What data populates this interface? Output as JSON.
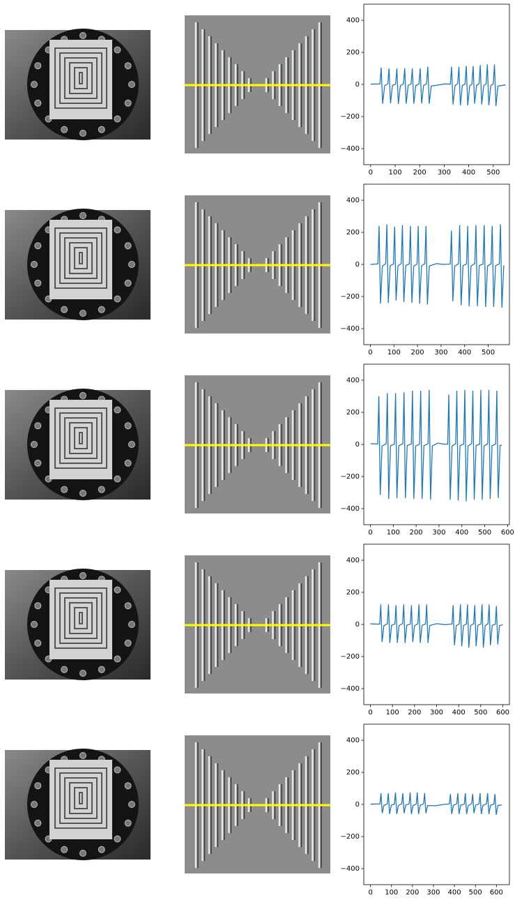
{
  "chart_data": [
    {
      "type": "line",
      "color": "#1f77b4",
      "xlim": [
        -28,
        566
      ],
      "ylim": [
        -500,
        500
      ],
      "xticks": [
        0,
        100,
        200,
        300,
        400,
        500
      ],
      "yticks": [
        {
          "value": -400,
          "label": "−400"
        },
        {
          "value": -200,
          "label": "−200"
        },
        0,
        200,
        400
      ],
      "x": [
        0,
        38,
        43,
        49,
        57,
        70,
        75,
        81,
        89,
        102,
        107,
        113,
        121,
        134,
        139,
        145,
        153,
        165,
        170,
        176,
        184,
        197,
        202,
        208,
        216,
        228,
        233,
        239,
        247,
        270,
        300,
        325,
        330,
        336,
        344,
        355,
        360,
        366,
        374,
        385,
        390,
        396,
        404,
        413,
        418,
        424,
        432,
        442,
        447,
        453,
        461,
        471,
        476,
        482,
        490,
        500,
        505,
        511,
        519,
        550
      ],
      "values": [
        2,
        3,
        105,
        -120,
        -8,
        4,
        100,
        -118,
        -6,
        2,
        100,
        -122,
        -9,
        5,
        100,
        -120,
        -5,
        3,
        100,
        -121,
        -7,
        2,
        100,
        -119,
        -6,
        4,
        110,
        -120,
        -10,
        -5,
        3,
        2,
        110,
        -125,
        -8,
        5,
        110,
        -130,
        -6,
        3,
        115,
        -130,
        -9,
        2,
        115,
        -120,
        -5,
        4,
        120,
        -125,
        -7,
        3,
        125,
        -130,
        -6,
        2,
        125,
        -135,
        -10,
        -3
      ]
    },
    {
      "type": "line",
      "color": "#1f77b4",
      "xlim": [
        -28,
        590
      ],
      "ylim": [
        -500,
        500
      ],
      "xticks": [
        0,
        100,
        200,
        300,
        400,
        500
      ],
      "yticks": [
        {
          "value": -400,
          "label": "−400"
        },
        {
          "value": -200,
          "label": "−200"
        },
        0,
        200,
        400
      ],
      "x": [
        0,
        32,
        37,
        43,
        51,
        65,
        70,
        76,
        84,
        98,
        103,
        109,
        117,
        131,
        136,
        142,
        150,
        165,
        170,
        176,
        184,
        198,
        203,
        209,
        217,
        231,
        236,
        242,
        250,
        280,
        310,
        339,
        344,
        350,
        358,
        374,
        379,
        385,
        393,
        408,
        413,
        419,
        427,
        443,
        448,
        454,
        462,
        478,
        483,
        489,
        497,
        512,
        517,
        523,
        531,
        547,
        552,
        558,
        566
      ],
      "values": [
        0,
        3,
        240,
        -245,
        -10,
        4,
        250,
        -240,
        -8,
        2,
        235,
        -225,
        -9,
        5,
        245,
        -235,
        -7,
        3,
        240,
        -240,
        -10,
        2,
        240,
        -245,
        -8,
        4,
        240,
        -250,
        -9,
        5,
        0,
        2,
        210,
        -230,
        -10,
        4,
        245,
        -255,
        -8,
        3,
        240,
        -260,
        -9,
        5,
        245,
        -260,
        -7,
        2,
        245,
        -265,
        -10,
        4,
        240,
        -265,
        -8,
        3,
        250,
        -270,
        -6
      ]
    },
    {
      "type": "line",
      "color": "#1f77b4",
      "xlim": [
        -29,
        608
      ],
      "ylim": [
        -500,
        500
      ],
      "xticks": [
        0,
        100,
        200,
        300,
        400,
        500,
        600
      ],
      "yticks": [
        {
          "value": -400,
          "label": "−400"
        },
        {
          "value": -200,
          "label": "−200"
        },
        0,
        200,
        400
      ],
      "x": [
        0,
        32,
        37,
        43,
        51,
        69,
        74,
        80,
        88,
        105,
        110,
        116,
        124,
        142,
        147,
        153,
        161,
        179,
        184,
        190,
        198,
        215,
        220,
        226,
        234,
        252,
        257,
        263,
        271,
        295,
        320,
        338,
        343,
        349,
        357,
        373,
        378,
        384,
        392,
        408,
        413,
        419,
        427,
        443,
        448,
        454,
        462,
        478,
        483,
        489,
        497,
        513,
        518,
        524,
        532,
        548,
        553,
        559,
        567,
        575
      ],
      "values": [
        5,
        3,
        300,
        -315,
        -10,
        4,
        320,
        -340,
        -8,
        2,
        320,
        -335,
        -9,
        5,
        325,
        -335,
        -7,
        3,
        335,
        -340,
        -10,
        2,
        335,
        -340,
        -8,
        4,
        340,
        -345,
        -9,
        8,
        2,
        2,
        310,
        -345,
        -10,
        4,
        335,
        -350,
        -8,
        3,
        340,
        -355,
        -9,
        5,
        335,
        -345,
        -7,
        2,
        340,
        -345,
        -10,
        4,
        340,
        -340,
        -8,
        3,
        335,
        -335,
        -6,
        -5
      ]
    },
    {
      "type": "line",
      "color": "#1f77b4",
      "xlim": [
        -30,
        630
      ],
      "ylim": [
        -500,
        500
      ],
      "xticks": [
        0,
        100,
        200,
        300,
        400,
        500,
        600
      ],
      "yticks": [
        {
          "value": -400,
          "label": "−400"
        },
        {
          "value": -200,
          "label": "−200"
        },
        0,
        200,
        400
      ],
      "x": [
        0,
        42,
        47,
        53,
        61,
        77,
        82,
        88,
        96,
        111,
        116,
        122,
        130,
        146,
        151,
        157,
        165,
        181,
        186,
        192,
        200,
        215,
        220,
        226,
        234,
        250,
        255,
        261,
        269,
        300,
        340,
        370,
        375,
        381,
        389,
        403,
        408,
        414,
        422,
        435,
        440,
        446,
        454,
        468,
        473,
        479,
        487,
        501,
        506,
        512,
        520,
        533,
        538,
        544,
        552,
        566,
        571,
        577,
        585,
        600
      ],
      "values": [
        3,
        2,
        125,
        -110,
        -8,
        4,
        125,
        -115,
        -6,
        3,
        120,
        -115,
        -7,
        5,
        125,
        -115,
        -5,
        2,
        120,
        -110,
        -8,
        4,
        125,
        -115,
        -6,
        3,
        125,
        -115,
        -7,
        5,
        -2,
        3,
        120,
        -130,
        -8,
        4,
        125,
        -135,
        -6,
        2,
        125,
        -145,
        -7,
        5,
        120,
        -135,
        -5,
        3,
        125,
        -145,
        -8,
        4,
        125,
        -130,
        -6,
        2,
        115,
        -125,
        -7,
        -2
      ]
    },
    {
      "type": "line",
      "color": "#1f77b4",
      "xlim": [
        -32,
        662
      ],
      "ylim": [
        -500,
        500
      ],
      "xticks": [
        0,
        100,
        200,
        300,
        400,
        500,
        600
      ],
      "yticks": [
        {
          "value": -400,
          "label": "−400"
        },
        {
          "value": -200,
          "label": "−200"
        },
        0,
        200,
        400
      ],
      "x": [
        0,
        45,
        50,
        56,
        64,
        80,
        85,
        91,
        99,
        114,
        119,
        125,
        133,
        149,
        154,
        160,
        168,
        184,
        189,
        195,
        203,
        218,
        223,
        229,
        237,
        253,
        258,
        264,
        272,
        310,
        350,
        376,
        381,
        387,
        395,
        411,
        416,
        422,
        430,
        447,
        452,
        458,
        466,
        482,
        487,
        493,
        501,
        517,
        522,
        528,
        536,
        553,
        558,
        564,
        572,
        588,
        593,
        599,
        607,
        625
      ],
      "values": [
        2,
        3,
        70,
        -55,
        -6,
        4,
        70,
        -60,
        -5,
        2,
        75,
        -60,
        -7,
        5,
        70,
        -55,
        -4,
        3,
        75,
        -60,
        -6,
        2,
        75,
        -60,
        -5,
        4,
        70,
        -55,
        -7,
        -8,
        0,
        3,
        65,
        -60,
        -6,
        4,
        70,
        -60,
        -5,
        2,
        70,
        -60,
        -7,
        5,
        65,
        -55,
        -4,
        3,
        70,
        -60,
        -6,
        4,
        70,
        -60,
        -5,
        2,
        65,
        -65,
        -7,
        -3
      ]
    }
  ]
}
